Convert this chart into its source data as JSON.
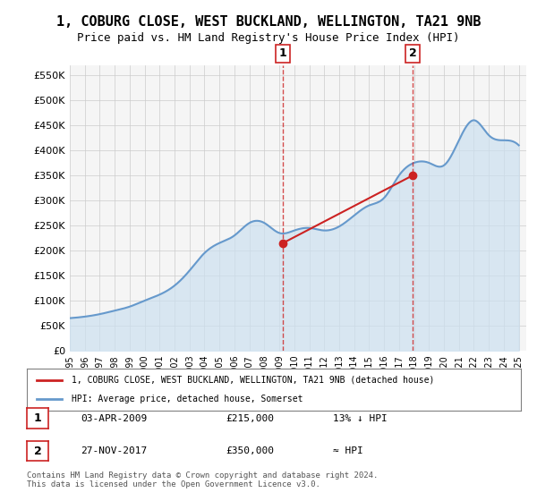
{
  "title": "1, COBURG CLOSE, WEST BUCKLAND, WELLINGTON, TA21 9NB",
  "subtitle": "Price paid vs. HM Land Registry's House Price Index (HPI)",
  "ylabel_ticks": [
    "£0",
    "£50K",
    "£100K",
    "£150K",
    "£200K",
    "£250K",
    "£300K",
    "£350K",
    "£400K",
    "£450K",
    "£500K",
    "£550K"
  ],
  "ylim": [
    0,
    570000
  ],
  "xlim_start": 1995.0,
  "xlim_end": 2025.5,
  "sale1_date": 2009.25,
  "sale1_price": 215000,
  "sale1_label": "1",
  "sale2_date": 2017.92,
  "sale2_price": 350000,
  "sale2_label": "2",
  "hpi_color": "#6699cc",
  "hpi_fill_color": "#cce0f0",
  "price_color": "#cc2222",
  "sale_marker_color": "#cc2222",
  "vline_color": "#cc2222",
  "background_color": "#f5f5f5",
  "grid_color": "#cccccc",
  "legend_line1": "1, COBURG CLOSE, WEST BUCKLAND, WELLINGTON, TA21 9NB (detached house)",
  "legend_line2": "HPI: Average price, detached house, Somerset",
  "table_row1": [
    "1",
    "03-APR-2009",
    "£215,000",
    "13% ↓ HPI"
  ],
  "table_row2": [
    "2",
    "27-NOV-2017",
    "£350,000",
    "≈ HPI"
  ],
  "footer": "Contains HM Land Registry data © Crown copyright and database right 2024.\nThis data is licensed under the Open Government Licence v3.0.",
  "hpi_years": [
    1995,
    1996,
    1997,
    1998,
    1999,
    2000,
    2001,
    2002,
    2003,
    2004,
    2005,
    2006,
    2007,
    2008,
    2009,
    2010,
    2011,
    2012,
    2013,
    2014,
    2015,
    2016,
    2017,
    2018,
    2019,
    2020,
    2021,
    2022,
    2023,
    2024,
    2025
  ],
  "hpi_values": [
    65000,
    68000,
    73000,
    80000,
    88000,
    100000,
    112000,
    130000,
    160000,
    195000,
    215000,
    230000,
    255000,
    255000,
    235000,
    240000,
    245000,
    240000,
    248000,
    270000,
    290000,
    305000,
    350000,
    375000,
    375000,
    370000,
    420000,
    460000,
    430000,
    420000,
    410000
  ],
  "price_years": [
    2009.25,
    2017.92
  ],
  "price_values": [
    215000,
    350000
  ]
}
